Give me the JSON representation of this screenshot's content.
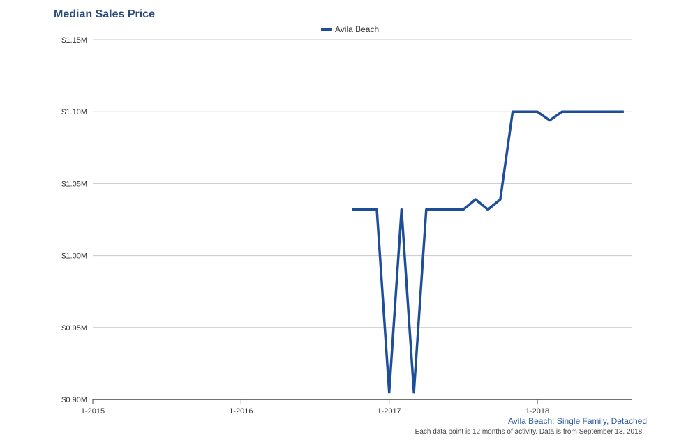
{
  "chart_data": {
    "type": "line",
    "title": "Median Sales Price",
    "subtitle": "Avila Beach: Single Family, Detached",
    "note": "Each data point is 12 months of activity. Data is from September 13, 2018.",
    "xlabel": "",
    "ylabel": "",
    "x_ticks": [
      "1-2015",
      "1-2016",
      "1-2017",
      "1-2018"
    ],
    "y_ticks": [
      "$0.90M",
      "$0.95M",
      "$1.00M",
      "$1.05M",
      "$1.10M",
      "$1.15M"
    ],
    "ylim": [
      0.9,
      1.15
    ],
    "grid": true,
    "legend_position": "top-center",
    "series": [
      {
        "name": "Avila Beach",
        "color": "#1f4e99",
        "x": [
          "2016-10",
          "2016-11",
          "2016-12",
          "2017-01",
          "2017-02",
          "2017-03",
          "2017-04",
          "2017-05",
          "2017-06",
          "2017-07",
          "2017-08",
          "2017-09",
          "2017-10",
          "2017-11",
          "2017-12",
          "2018-01",
          "2018-02",
          "2018-03",
          "2018-04",
          "2018-05",
          "2018-06",
          "2018-07",
          "2018-08"
        ],
        "values": [
          1.032,
          1.032,
          1.032,
          0.905,
          1.032,
          0.905,
          1.032,
          1.032,
          1.032,
          1.032,
          1.039,
          1.032,
          1.039,
          1.1,
          1.1,
          1.1,
          1.094,
          1.1,
          1.1,
          1.1,
          1.1,
          1.1,
          1.1
        ]
      }
    ]
  }
}
